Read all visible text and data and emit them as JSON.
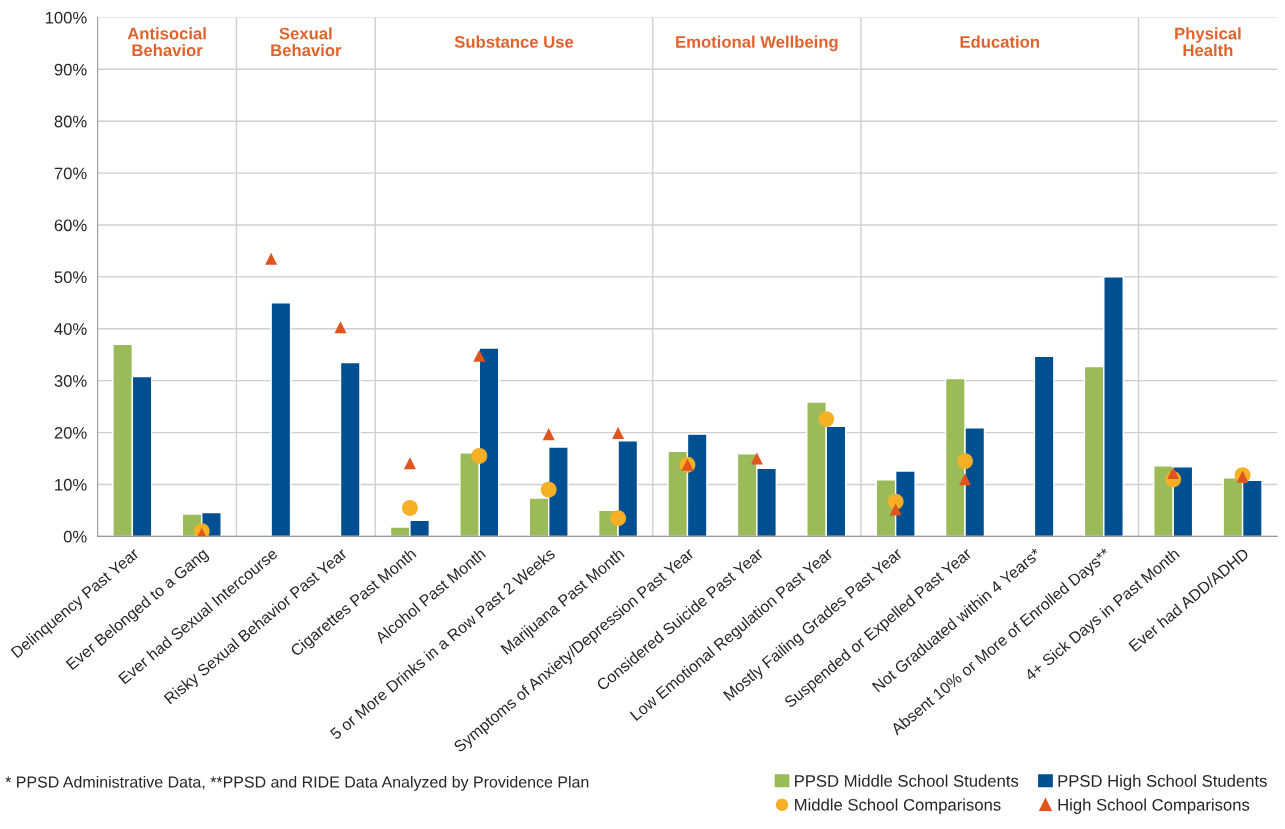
{
  "chart_data": {
    "type": "bar",
    "categories": [
      "Delinquency Past Year",
      "Ever Belonged to a Gang",
      "Ever had Sexual Intercourse",
      "Risky Sexual Behavior Past Year",
      "Cigarettes Past Month",
      "Alcohol Past Month",
      "5 or More Drinks in a Row Past 2 Weeks",
      "Marijuana Past Month",
      "Symptoms of Anxiety/Depression Past Year",
      "Considered Suicide Past Year",
      "Low Emotional Regulation Past Year",
      "Mostly Failing Grades Past Year",
      "Suspended or Expelled Past Year",
      "Not Graduated within 4 Years*",
      "Absent 10% or More of Enrolled Days**",
      "4+ Sick Days in Past Month",
      "Ever had ADD/ADHD"
    ],
    "series": [
      {
        "name": "PPSD Middle School Students",
        "color": "#9bbb59",
        "values": [
          37,
          4.3,
          null,
          null,
          1.8,
          16.1,
          7.4,
          5.0,
          16.4,
          15.9,
          25.9,
          10.9,
          30.4,
          null,
          32.7,
          13.6,
          11.3
        ]
      },
      {
        "name": "PPSD High School Students",
        "color": "#004f91",
        "values": [
          30.8,
          4.6,
          45,
          33.5,
          3.1,
          36.3,
          17.2,
          18.4,
          19.7,
          13.1,
          21.2,
          12.6,
          20.9,
          34.7,
          50.0,
          13.4,
          10.8
        ]
      },
      {
        "name": "Middle School Comparisons",
        "type": "scatter",
        "marker": "circle",
        "color": "#f5b025",
        "values": [
          null,
          1.0,
          null,
          null,
          5.5,
          15.5,
          9.0,
          3.5,
          13.8,
          null,
          22.6,
          6.7,
          14.5,
          null,
          null,
          11.0,
          11.8
        ]
      },
      {
        "name": "High School Comparisons",
        "type": "scatter",
        "marker": "triangle",
        "color": "#e0541e",
        "values": [
          null,
          0.5,
          53.5,
          40.3,
          14.1,
          34.8,
          19.7,
          19.9,
          13.8,
          15.0,
          null,
          5.2,
          11.0,
          null,
          null,
          12.2,
          11.5
        ]
      }
    ],
    "ylim": [
      0,
      100
    ],
    "yticks": [
      {
        "value": 0,
        "label": "0%"
      },
      {
        "value": 10,
        "label": "10%"
      },
      {
        "value": 20,
        "label": "20%"
      },
      {
        "value": 30,
        "label": "30%"
      },
      {
        "value": 40,
        "label": "40%"
      },
      {
        "value": 50,
        "label": "50%"
      },
      {
        "value": 60,
        "label": "60%"
      },
      {
        "value": 70,
        "label": "70%"
      },
      {
        "value": 80,
        "label": "80%"
      },
      {
        "value": 90,
        "label": "90%"
      },
      {
        "value": 100,
        "label": "100%"
      }
    ],
    "grid": "y",
    "legend": "bottom right",
    "annotations": [
      "Antisocial\nBehavior",
      "Sexual\nBehavior",
      "Substance Use",
      "Emotional Wellbeing",
      "Education",
      "Physical\nHealth",
      "* PPSD Administrative Data, **PPSD and RIDE Data Analyzed by Providence Plan"
    ]
  }
}
